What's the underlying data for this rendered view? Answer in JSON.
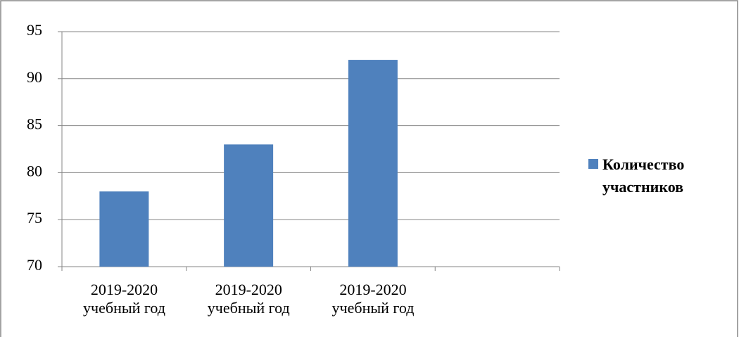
{
  "chart_data": {
    "type": "bar",
    "categories": [
      "2019-2020 учебный год",
      "2019-2020 учебный год",
      "2019-2020 учебный год",
      null
    ],
    "series": [
      {
        "name": "Количество участников",
        "color": "#4f81bd",
        "values": [
          78,
          83,
          92,
          null
        ]
      }
    ],
    "ylim": [
      70,
      95
    ],
    "yticks": [
      70,
      75,
      80,
      85,
      90,
      95
    ],
    "grid": true,
    "legend": "right"
  }
}
